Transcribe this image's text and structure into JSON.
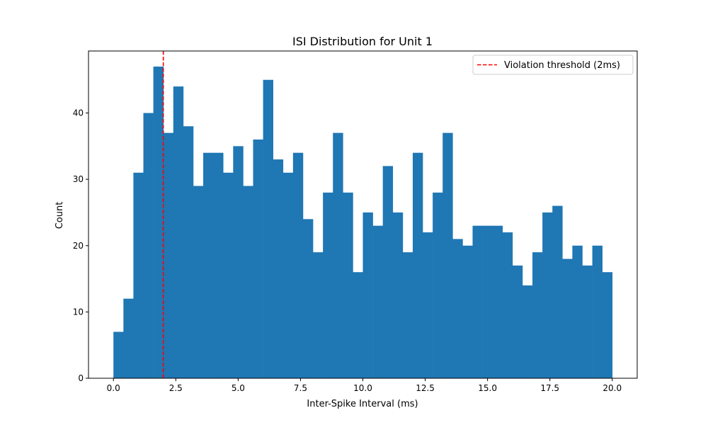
{
  "chart_data": {
    "type": "bar",
    "title": "ISI Distribution for Unit 1",
    "xlabel": "Inter-Spike Interval (ms)",
    "ylabel": "Count",
    "xlim": [
      -1.0,
      21.0
    ],
    "ylim": [
      0,
      49.35
    ],
    "x_ticks": [
      0.0,
      2.5,
      5.0,
      7.5,
      10.0,
      12.5,
      15.0,
      17.5,
      20.0
    ],
    "x_tick_labels": [
      "0.0",
      "2.5",
      "5.0",
      "7.5",
      "10.0",
      "12.5",
      "15.0",
      "17.5",
      "20.0"
    ],
    "y_ticks": [
      0,
      10,
      20,
      30,
      40
    ],
    "y_tick_labels": [
      "0",
      "10",
      "20",
      "30",
      "40"
    ],
    "bin_edges": [
      0.0,
      0.4,
      0.8,
      1.2,
      1.6,
      2.0,
      2.4,
      2.8,
      3.2,
      3.6,
      4.0,
      4.4,
      4.8,
      5.2,
      5.6,
      6.0,
      6.4,
      6.8,
      7.2,
      7.6,
      8.0,
      8.4,
      8.8,
      9.2,
      9.6,
      10.0,
      10.4,
      10.8,
      11.2,
      11.6,
      12.0,
      12.4,
      12.8,
      13.2,
      13.6,
      14.0,
      14.4,
      14.8,
      15.2,
      15.6,
      16.0,
      16.4,
      16.8,
      17.2,
      17.6,
      18.0,
      18.4,
      18.8,
      19.2,
      19.6,
      20.0
    ],
    "values": [
      7,
      12,
      31,
      40,
      47,
      37,
      44,
      38,
      29,
      34,
      34,
      31,
      35,
      29,
      36,
      45,
      33,
      31,
      34,
      24,
      19,
      28,
      37,
      28,
      16,
      25,
      23,
      32,
      25,
      19,
      34,
      22,
      28,
      37,
      21,
      20,
      23,
      23,
      23,
      22,
      17,
      14,
      19,
      25,
      26,
      18,
      20,
      17,
      20,
      16
    ],
    "bar_color": "#1f77b4",
    "threshold": {
      "x": 2.0,
      "label": "Violation threshold (2ms)",
      "color": "#ff0000",
      "style": "dashed"
    },
    "legend": {
      "placement": "top-right"
    },
    "grid": false
  }
}
